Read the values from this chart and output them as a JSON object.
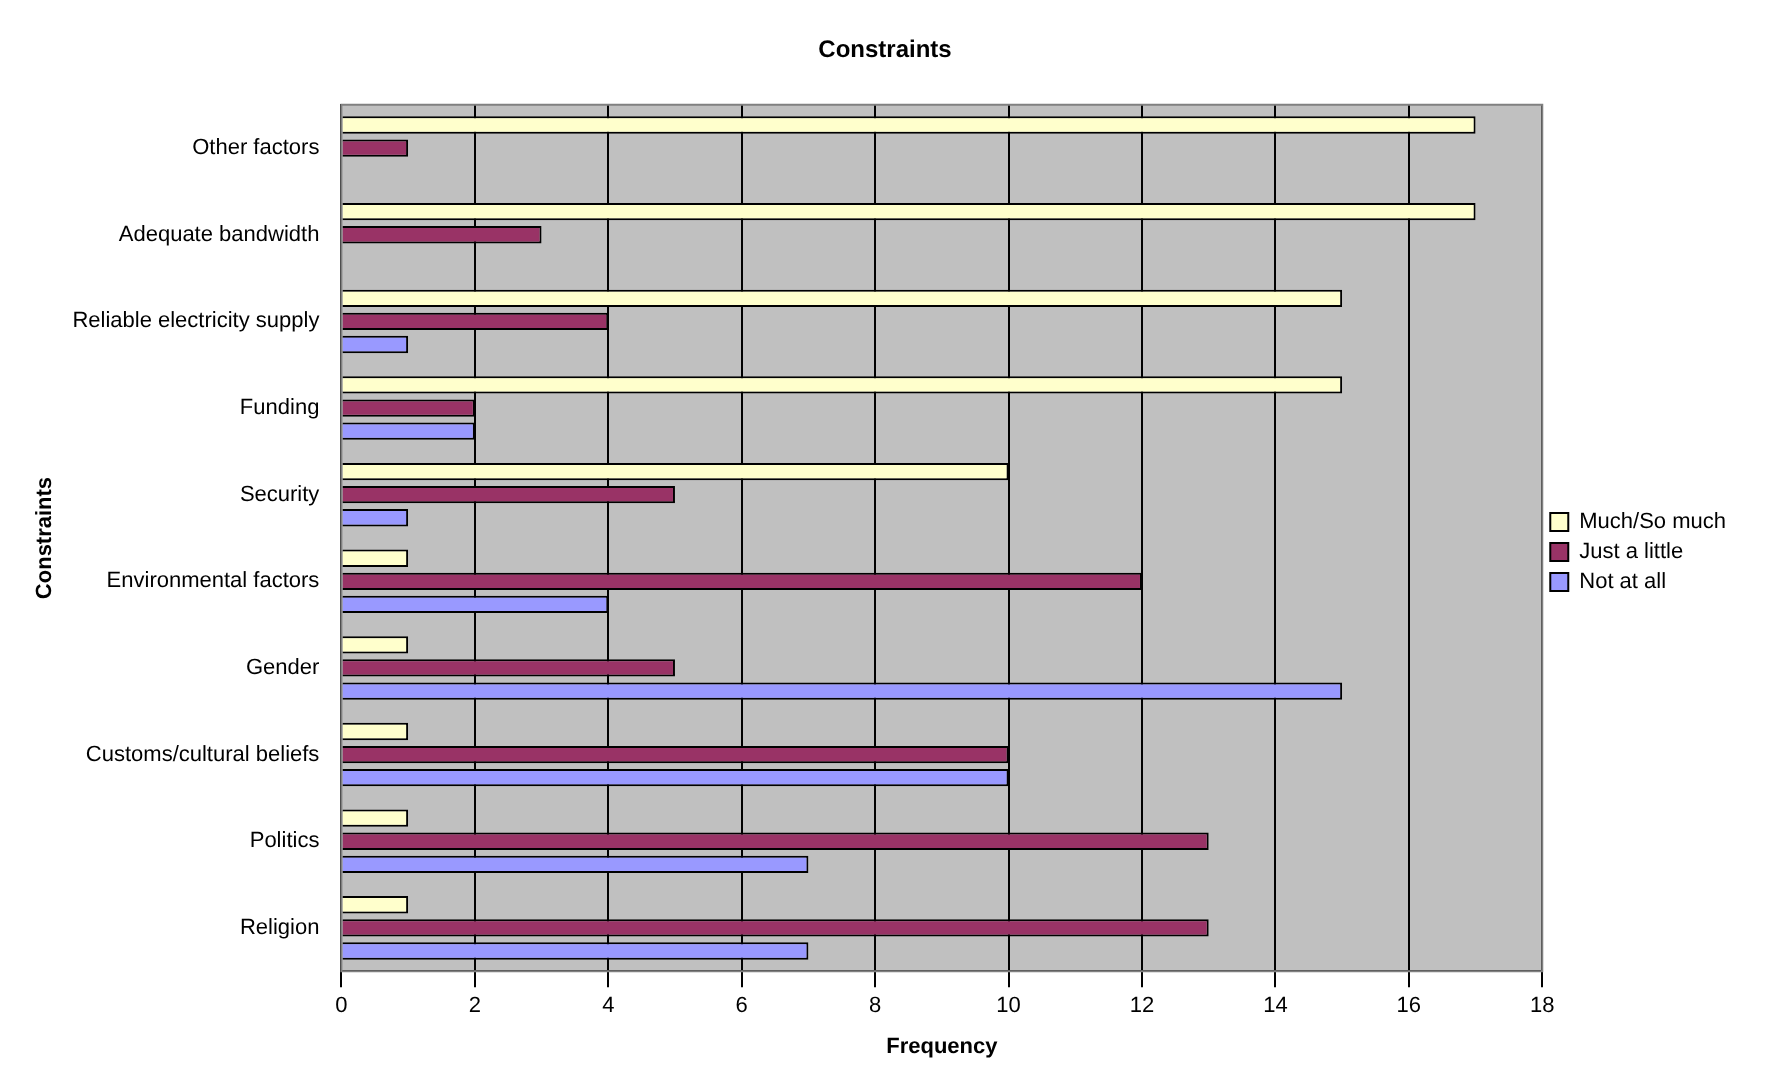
{
  "chart_data": {
    "type": "bar",
    "orientation": "horizontal",
    "title": "Constraints",
    "xlabel": "Frequency",
    "ylabel": "Constraints",
    "categories": [
      "Other factors",
      "Adequate bandwidth",
      "Reliable electricity supply",
      "Funding",
      "Security",
      "Environmental factors",
      "Gender",
      "Customs/cultural beliefs",
      "Politics",
      "Religion"
    ],
    "series": [
      {
        "name": "Much/So much",
        "color": "#ffffcc",
        "values": [
          17,
          17,
          15,
          15,
          10,
          1,
          1,
          1,
          1,
          1
        ]
      },
      {
        "name": "Just a little",
        "color": "#993366",
        "values": [
          1,
          3,
          4,
          2,
          5,
          12,
          5,
          10,
          13,
          13
        ]
      },
      {
        "name": "Not at all",
        "color": "#9999ff",
        "values": [
          0,
          0,
          1,
          2,
          1,
          4,
          15,
          10,
          7,
          7
        ]
      }
    ],
    "xlim": [
      0,
      18
    ],
    "xticks": [
      0,
      2,
      4,
      6,
      8,
      10,
      12,
      14,
      16,
      18
    ],
    "grid": "x",
    "legend": "right"
  }
}
